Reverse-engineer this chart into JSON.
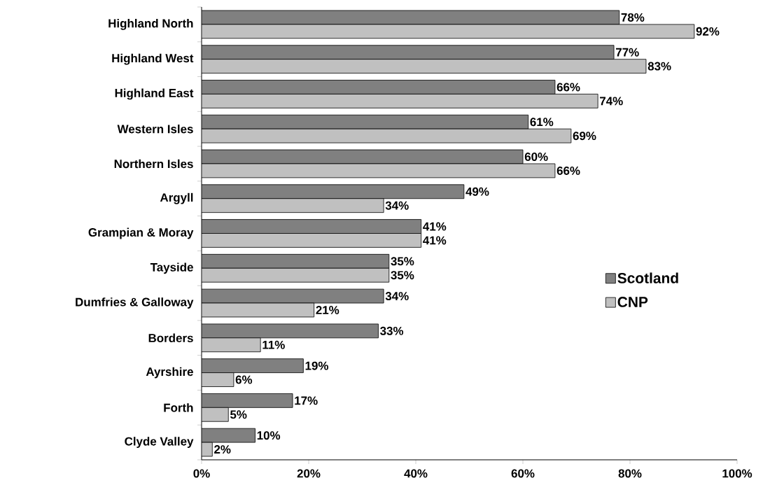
{
  "chart_data": {
    "type": "bar",
    "orientation": "horizontal",
    "categories": [
      "Highland North",
      "Highland West",
      "Highland East",
      "Western Isles",
      "Northern Isles",
      "Argyll",
      "Grampian & Moray",
      "Tayside",
      "Dumfries & Galloway",
      "Borders",
      "Ayrshire",
      "Forth",
      "Clyde Valley"
    ],
    "series": [
      {
        "name": "Scotland",
        "color": "#808080",
        "values": [
          78,
          77,
          66,
          61,
          60,
          49,
          41,
          35,
          34,
          33,
          19,
          17,
          10
        ],
        "value_labels": [
          "78%",
          "77%",
          "66%",
          "61%",
          "60%",
          "49%",
          "41%",
          "35%",
          "34%",
          "33%",
          "19%",
          "17%",
          "10%"
        ]
      },
      {
        "name": "CNP",
        "color": "#c0c0c0",
        "values": [
          92,
          83,
          74,
          69,
          66,
          34,
          41,
          35,
          21,
          11,
          6,
          5,
          2
        ],
        "value_labels": [
          "92%",
          "83%",
          "74%",
          "69%",
          "66%",
          "34%",
          "41%",
          "35%",
          "21%",
          "11%",
          "6%",
          "5%",
          "2%"
        ]
      }
    ],
    "xlim": [
      0,
      100
    ],
    "xticks": [
      {
        "value": 0,
        "label": "0%"
      },
      {
        "value": 20,
        "label": "20%"
      },
      {
        "value": 40,
        "label": "40%"
      },
      {
        "value": 60,
        "label": "60%"
      },
      {
        "value": 80,
        "label": "80%"
      },
      {
        "value": 100,
        "label": "100%"
      }
    ],
    "grid": false,
    "legend": "right"
  }
}
